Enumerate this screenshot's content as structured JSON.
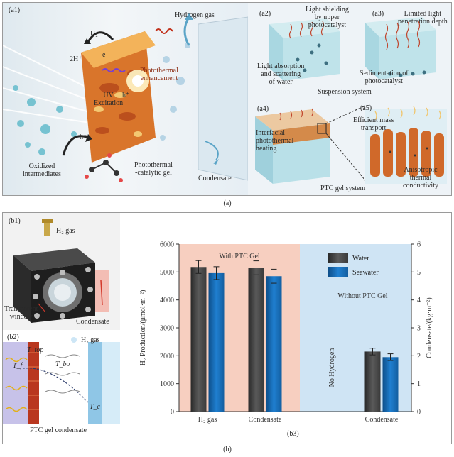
{
  "figure_a": {
    "caption": "(a)",
    "a1": {
      "tag": "(a1)",
      "hydrogen_gas": "Hydrogen gas",
      "h2": "H₂",
      "two_h_plus": "2H⁺",
      "e_minus": "e⁻",
      "h_plus_top": "h⁺",
      "photothermal_enhancement": [
        "Photothermal",
        "enhancement"
      ],
      "uv_excitation": [
        "UV",
        "Excitation"
      ],
      "oxidized_intermediates": [
        "Oxidized",
        "intermediates"
      ],
      "h_plus_bottom": "h⁺",
      "photothermal_catalytic_gel": [
        "Photothermal",
        "-catalytic gel"
      ],
      "condensate": "Condensate"
    },
    "a2": {
      "tag": "(a2)",
      "light_shielding": [
        "Light shielding",
        "by upper",
        "photocatalyst"
      ],
      "light_absorption": [
        "Light absorption",
        "and scattering",
        "of water"
      ]
    },
    "a3": {
      "tag": "(a3)",
      "limited_light": [
        "Limited light",
        "penetration depth"
      ],
      "sedimentation": [
        "Sedimentation of",
        "photocatalyst"
      ]
    },
    "suspension_system": "Suspension system",
    "a4": {
      "tag": "(a4)",
      "interfacial": [
        "Interfacial",
        "photothermal",
        "heating"
      ]
    },
    "a5": {
      "tag": "(a5)",
      "efficient_mass": [
        "Efficient mass",
        "transport"
      ],
      "anisotropic": [
        "Anisotropic",
        "thermal",
        "conductivity"
      ]
    },
    "ptc_gel_system": "PTC gel system"
  },
  "figure_b": {
    "caption": "(b)",
    "b1": {
      "tag": "(b1)",
      "h2_gas": "H₂ gas",
      "transparent_window": [
        "Transparent",
        "window"
      ],
      "condensate": "Condensate"
    },
    "b2": {
      "tag": "(b2)",
      "h2_gas": "H₂ gas",
      "t_top": "T_top",
      "t_f": "T_f",
      "t_bo": "T_bo",
      "t_c": "T_c",
      "bottom_label": "PTC gel condensate"
    },
    "b3": {
      "tag": "(b3)"
    }
  },
  "chart_data": {
    "type": "bar",
    "groups": [
      {
        "label": "H₂ gas",
        "axis": "left",
        "values": {
          "Water": 5180,
          "Seawater": 4960
        },
        "errors": {
          "Water": 230,
          "Seawater": 230
        }
      },
      {
        "label": "Condensate",
        "axis": "right",
        "values": {
          "Water": 5.15,
          "Seawater": 4.85
        },
        "errors": {
          "Water": 0.25,
          "Seawater": 0.25
        }
      },
      {
        "label": "Condensate",
        "axis": "right",
        "values": {
          "Water": 2.15,
          "Seawater": 1.95
        },
        "errors": {
          "Water": 0.12,
          "Seawater": 0.12
        }
      }
    ],
    "series": [
      {
        "name": "Water",
        "color": "#5a5a5a"
      },
      {
        "name": "Seawater",
        "color": "#1f7fd0"
      }
    ],
    "ylabel_left": "H₂ Production/(μmol·m⁻²)",
    "ylabel_right": "Condensate/(kg·m⁻²)",
    "ylim_left": [
      0,
      6000
    ],
    "ylim_right": [
      0,
      6
    ],
    "yticks_left": [
      0,
      1000,
      2000,
      3000,
      4000,
      5000,
      6000
    ],
    "yticks_right": [
      0,
      1,
      2,
      3,
      4,
      5,
      6
    ],
    "region_left_label": "With PTC Gel",
    "region_right_label": "Without PTC Gel",
    "no_hydrogen_label": "No Hydrogen",
    "legend_placement": "top-right",
    "colors": {
      "left_region": "#f7cfc0",
      "right_region": "#cfe4f4"
    }
  }
}
